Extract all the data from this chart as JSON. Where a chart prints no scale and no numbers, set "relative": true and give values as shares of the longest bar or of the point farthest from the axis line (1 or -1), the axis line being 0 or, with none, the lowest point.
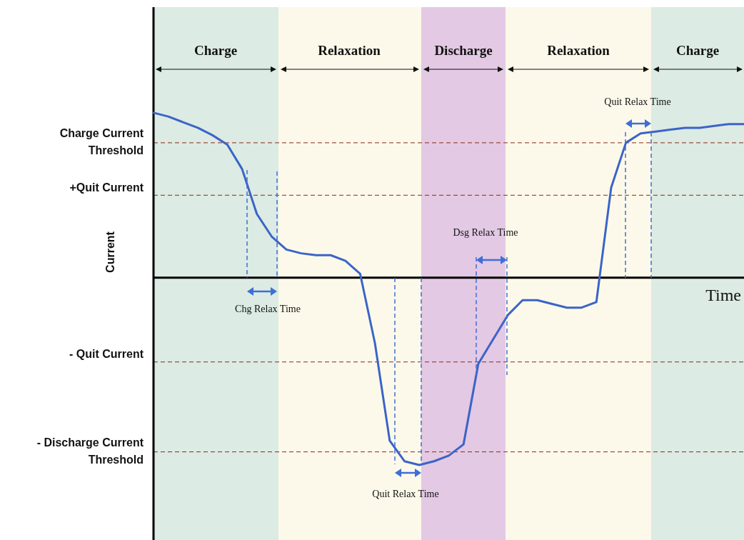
{
  "chart_data": {
    "type": "line",
    "relative": true,
    "xlabel": "Time",
    "ylabel": "Current",
    "categories": [
      null,
      null,
      null,
      null,
      null,
      null,
      null,
      null,
      null,
      null,
      null,
      null,
      null,
      null,
      null,
      null,
      null,
      null,
      null,
      null,
      null,
      null,
      null,
      null,
      null,
      null,
      null,
      null,
      null,
      null,
      null,
      null,
      null,
      null,
      null,
      null,
      null,
      null,
      null,
      null,
      null
    ],
    "values": [
      0.88,
      0.86,
      0.83,
      0.8,
      0.76,
      0.71,
      0.58,
      0.34,
      0.22,
      0.15,
      0.13,
      0.12,
      0.12,
      0.09,
      0.02,
      -0.35,
      -0.87,
      -0.98,
      -1,
      -0.98,
      -0.95,
      -0.89,
      -0.46,
      -0.33,
      -0.2,
      -0.12,
      -0.12,
      -0.14,
      -0.16,
      -0.16,
      -0.13,
      0.48,
      0.72,
      0.77,
      0.78,
      0.79,
      0.8,
      0.8,
      0.81,
      0.82,
      0.82
    ],
    "color": "#3b64c8",
    "ref_lines": [
      {
        "axis": "y",
        "value": 0.72,
        "label": "Charge Current Threshold",
        "color": "#8b2a1a",
        "line_style": "dashed"
      },
      {
        "axis": "y",
        "value": 0.44,
        "label": "+Quit Current",
        "color": "#8b2a1a",
        "line_style": "dashed"
      },
      {
        "axis": "y",
        "value": -0.45,
        "label": "- Quit Current",
        "color": "#8b2a1a",
        "line_style": "dashed"
      },
      {
        "axis": "y",
        "value": -0.93,
        "label": "- Discharge Current Threshold",
        "color": "#8b2a1a",
        "line_style": "dashed"
      }
    ],
    "annotations": [
      "Charge",
      "Relaxation",
      "Discharge",
      "Relaxation",
      "Charge",
      "Chg Relax Time",
      "Quit Relax Time",
      "Dsg Relax Time",
      "Quit Relax Time"
    ]
  }
}
